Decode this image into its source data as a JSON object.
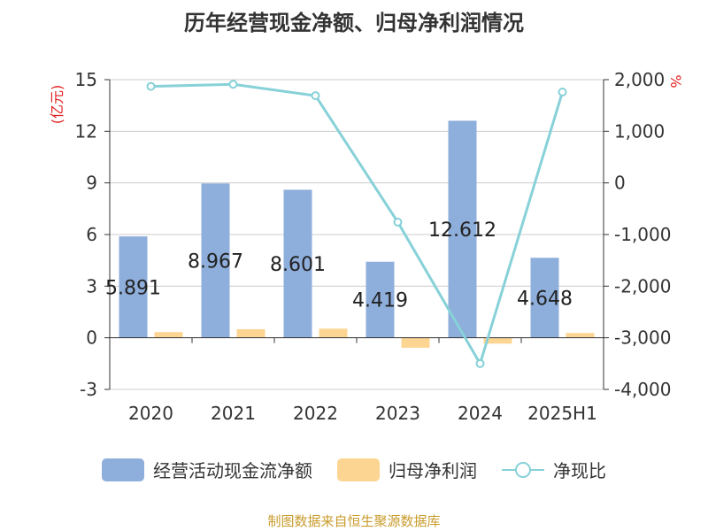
{
  "title": "历年经营现金净额、归母净利润情况",
  "source": "制图数据来自恒生聚源数据库",
  "colors": {
    "cash": "#8eaedb",
    "profit": "#fdd592",
    "ratio": "#87d1d8",
    "unit": "#e02020"
  },
  "chart_data": {
    "type": "bar",
    "categories": [
      "2020",
      "2021",
      "2022",
      "2023",
      "2024",
      "2025H1"
    ],
    "y_left": {
      "label": "(亿元)",
      "ylim": [
        -3,
        15
      ],
      "ticks": [
        "-3",
        "0",
        "3",
        "6",
        "9",
        "12",
        "15"
      ]
    },
    "y_right": {
      "label": "%",
      "ylim": [
        -4000,
        2000
      ],
      "ticks": [
        "-4,000",
        "-3,000",
        "-2,000",
        "-1,000",
        "0",
        "1,000",
        "2,000"
      ]
    },
    "grid": true,
    "legend_position": "bottom",
    "series": [
      {
        "name": "经营活动现金流净额",
        "type": "bar",
        "axis": "left",
        "values": [
          5.891,
          8.967,
          8.601,
          4.419,
          12.612,
          4.648
        ],
        "labels": [
          "5.891",
          "8.967",
          "8.601",
          "4.419",
          "12.612",
          "4.648"
        ]
      },
      {
        "name": "归母净利润",
        "type": "bar",
        "axis": "left",
        "values": [
          0.33,
          0.5,
          0.53,
          -0.58,
          -0.34,
          0.28
        ]
      },
      {
        "name": "净现比",
        "type": "line",
        "axis": "right",
        "values": [
          1870,
          1910,
          1690,
          -760,
          -3500,
          1760
        ]
      }
    ]
  }
}
